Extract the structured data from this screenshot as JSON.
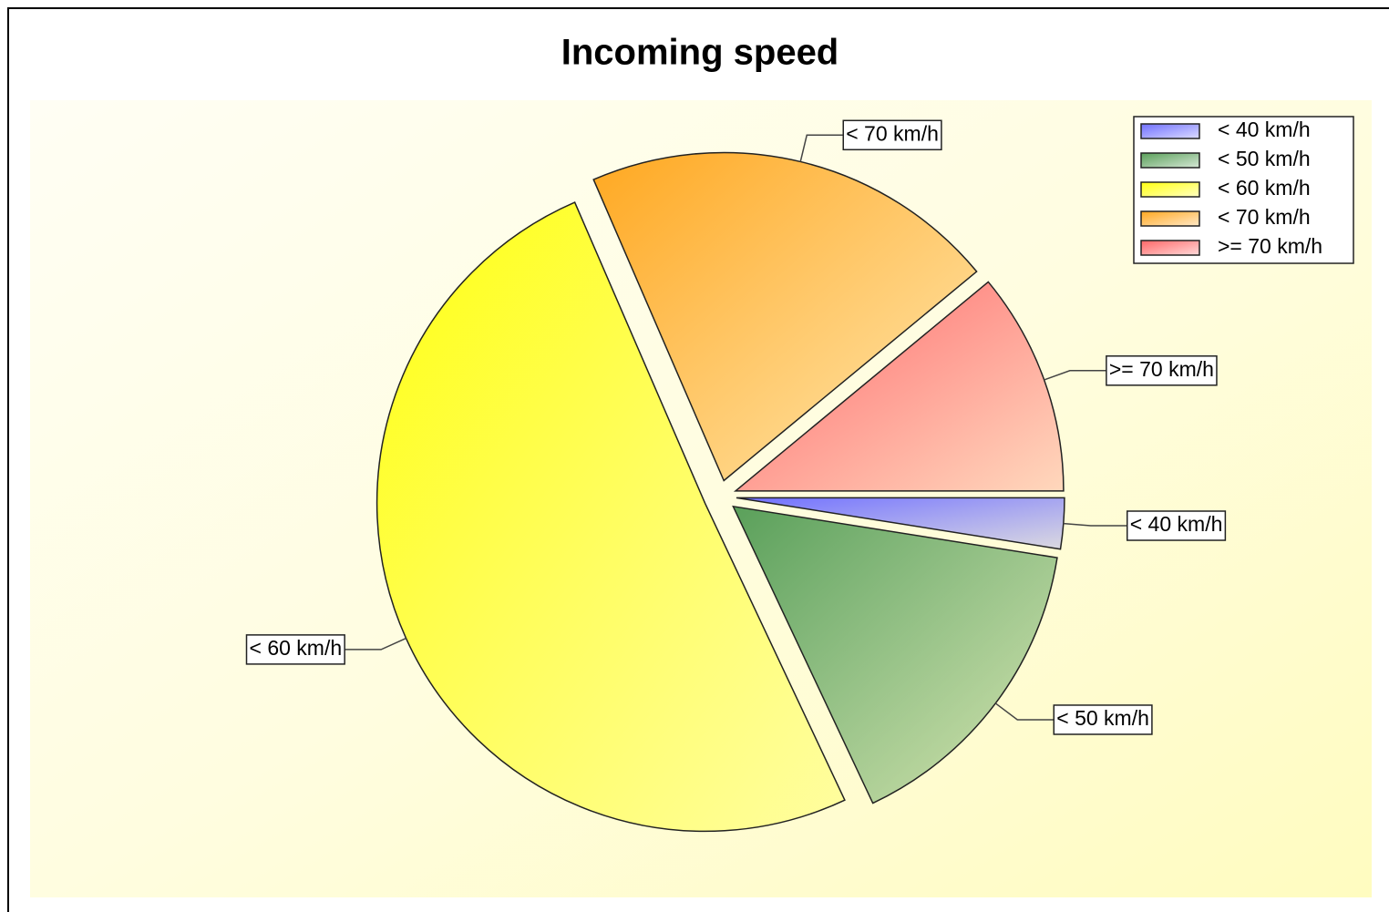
{
  "chart_data": {
    "type": "pie",
    "title": "Incoming speed",
    "categories": [
      "< 40 km/h",
      "< 50 km/h",
      "< 60 km/h",
      "< 70 km/h",
      ">= 70 km/h"
    ],
    "values": [
      2.5,
      15.5,
      50.5,
      20.5,
      11
    ],
    "colors": [
      "#7070ff",
      "#5aa05a",
      "#ffff10",
      "#ffa820",
      "#ff6868"
    ],
    "legend": "top-right"
  }
}
